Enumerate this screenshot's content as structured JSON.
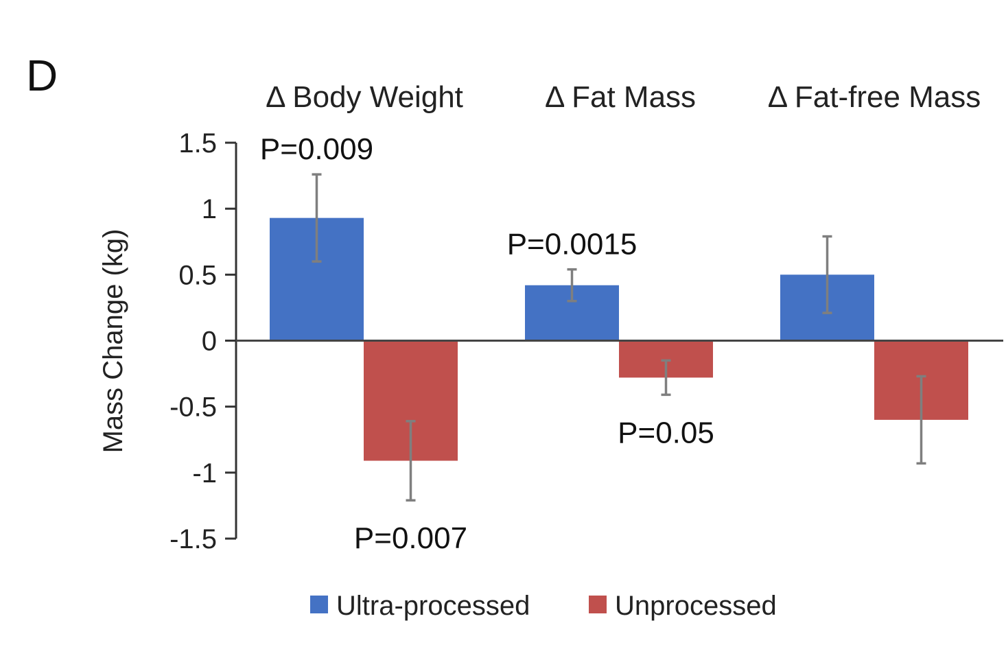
{
  "panel_label": "D",
  "chart_data": {
    "type": "bar",
    "categories": [
      "Δ Body Weight",
      "Δ Fat Mass",
      "Δ Fat-free Mass"
    ],
    "ylabel": "Mass Change (kg)",
    "xlabel": "",
    "ylim": [
      -1.5,
      1.5
    ],
    "yticks": [
      1.5,
      1,
      0.5,
      0,
      -0.5,
      -1,
      -1.5
    ],
    "ytick_labels": [
      "1.5",
      "1",
      "0.5",
      "0",
      "-0.5",
      "-1",
      "-1.5"
    ],
    "legend_position": "bottom",
    "grid": false,
    "series": [
      {
        "name": "Ultra-processed",
        "color": "#4472C4",
        "values": [
          0.93,
          0.42,
          0.5
        ],
        "error": [
          0.33,
          0.12,
          0.29
        ],
        "p_values": [
          "P=0.009",
          "P=0.0015",
          ""
        ]
      },
      {
        "name": "Unprocessed",
        "color": "#C0504D",
        "values": [
          -0.91,
          -0.28,
          -0.6
        ],
        "error": [
          0.3,
          0.13,
          0.33
        ],
        "p_values": [
          "P=0.007",
          "P=0.05",
          ""
        ]
      }
    ]
  }
}
